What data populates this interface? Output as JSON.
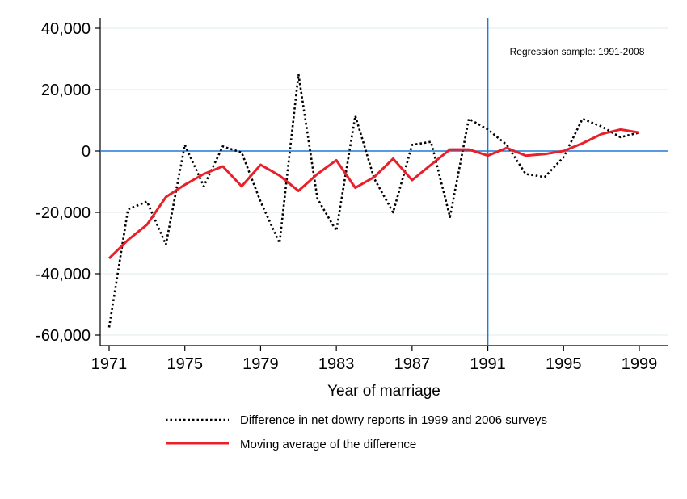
{
  "chart_data": {
    "type": "line",
    "title": "",
    "xlabel": "Year of marriage",
    "ylabel": "",
    "xlim": [
      1971,
      2000
    ],
    "ylim": [
      -60000,
      40000
    ],
    "xticks": [
      1971,
      1975,
      1979,
      1983,
      1987,
      1991,
      1995,
      1999
    ],
    "xtick_labels": [
      "1971",
      "1975",
      "1979",
      "1983",
      "1987",
      "1991",
      "1995",
      "1999"
    ],
    "yticks": [
      -60000,
      -40000,
      -20000,
      0,
      20000,
      40000
    ],
    "ytick_labels": [
      "-60,000",
      "-40,000",
      "-20,000",
      "0",
      "20,000",
      "40,000"
    ],
    "grid": true,
    "reference_lines": {
      "horizontal": 0,
      "vertical": 1991
    },
    "annotation": "Regression sample: 1991-2008",
    "legend_position": "bottom",
    "x": [
      1971,
      1972,
      1973,
      1974,
      1975,
      1976,
      1977,
      1978,
      1979,
      1980,
      1981,
      1982,
      1983,
      1984,
      1985,
      1986,
      1987,
      1988,
      1989,
      1990,
      1991,
      1992,
      1993,
      1994,
      1995,
      1996,
      1997,
      1998,
      1999
    ],
    "series": [
      {
        "name": "Difference in net dowry reports in 1999 and 2006 surveys",
        "style": "dotted",
        "color": "#000000",
        "values": [
          -57500,
          -19000,
          -16500,
          -30500,
          2000,
          -11500,
          1500,
          -500,
          -16500,
          -30000,
          25000,
          -15500,
          -26000,
          11500,
          -9000,
          -20000,
          2000,
          3000,
          -21500,
          10500,
          7000,
          2000,
          -7500,
          -8500,
          -2000,
          10500,
          8000,
          4500,
          6000
        ]
      },
      {
        "name": "Moving average of the difference",
        "style": "solid",
        "color": "#e8202a",
        "values": [
          -35000,
          -29000,
          -24000,
          -15000,
          -11000,
          -7500,
          -5000,
          -11500,
          -4500,
          -8000,
          -13000,
          -7500,
          -3000,
          -12000,
          -8500,
          -2500,
          -9500,
          -4500,
          500,
          500,
          -1500,
          1000,
          -1500,
          -1000,
          0,
          2500,
          5500,
          7000,
          6000
        ]
      }
    ]
  }
}
